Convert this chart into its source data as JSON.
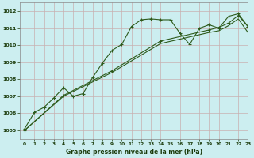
{
  "title": "Graphe pression niveau de la mer (hPa)",
  "bg_color": "#cceef0",
  "grid_color_major": "#c8b0b0",
  "line_color": "#2d5a1b",
  "marker": "+",
  "xlim": [
    -0.5,
    23
  ],
  "ylim": [
    1004.5,
    1012.5
  ],
  "yticks": [
    1005,
    1006,
    1007,
    1008,
    1009,
    1010,
    1011,
    1012
  ],
  "xticks": [
    0,
    1,
    2,
    3,
    4,
    5,
    6,
    7,
    8,
    9,
    10,
    11,
    12,
    13,
    14,
    15,
    16,
    17,
    18,
    19,
    20,
    21,
    22,
    23
  ],
  "series1_x": [
    0,
    1,
    2,
    3,
    4,
    5,
    6,
    7,
    8,
    9,
    10,
    11,
    12,
    13,
    14,
    15,
    16,
    17,
    18,
    19,
    20,
    21,
    22,
    23
  ],
  "series1_y": [
    1005.1,
    1006.05,
    1006.35,
    1006.9,
    1007.5,
    1007.0,
    1007.15,
    1008.1,
    1008.95,
    1009.7,
    1010.05,
    1011.1,
    1011.5,
    1011.55,
    1011.5,
    1011.5,
    1010.7,
    1010.05,
    1011.0,
    1011.2,
    1011.0,
    1011.7,
    1011.85,
    1011.1
  ],
  "series2_x": [
    0,
    4,
    9,
    14,
    19,
    20,
    21,
    22,
    23
  ],
  "series2_y": [
    1005.0,
    1007.05,
    1008.5,
    1010.25,
    1010.9,
    1011.05,
    1011.3,
    1011.75,
    1011.1
  ],
  "series3_x": [
    0,
    4,
    9,
    14,
    19,
    20,
    21,
    22,
    23
  ],
  "series3_y": [
    1005.0,
    1007.0,
    1008.4,
    1010.1,
    1010.75,
    1010.85,
    1011.15,
    1011.55,
    1010.75
  ]
}
